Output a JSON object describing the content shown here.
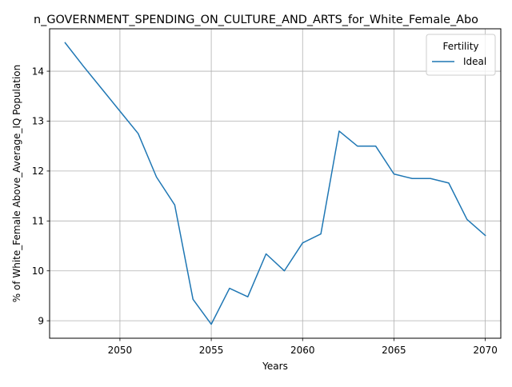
{
  "chart_data": {
    "type": "line",
    "title": "n_GOVERNMENT_SPENDING_ON_CULTURE_AND_ARTS_for_White_Female_Abo",
    "xlabel": "Years",
    "ylabel": "% of White_Female Above_Average_IQ Population",
    "xlim": [
      2046.15,
      2070.85
    ],
    "ylim": [
      8.65,
      14.85
    ],
    "xticks": [
      2050,
      2055,
      2060,
      2065,
      2070
    ],
    "yticks": [
      9,
      10,
      11,
      12,
      13,
      14
    ],
    "grid": true,
    "legend": {
      "title": "Fertility",
      "position": "top-right"
    },
    "series": [
      {
        "name": "Ideal",
        "color": "#1f77b4",
        "x": [
          2047,
          2048,
          2049,
          2050,
          2051,
          2052,
          2053,
          2054,
          2055,
          2056,
          2057,
          2058,
          2059,
          2060,
          2061,
          2062,
          2063,
          2064,
          2065,
          2066,
          2067,
          2068,
          2069,
          2070
        ],
        "y": [
          14.57,
          14.1,
          13.65,
          13.2,
          12.75,
          11.88,
          11.32,
          9.43,
          8.93,
          9.65,
          9.48,
          10.34,
          10.0,
          10.56,
          10.74,
          12.8,
          12.5,
          12.5,
          11.94,
          11.85,
          11.85,
          11.76,
          11.03,
          10.71
        ]
      }
    ]
  }
}
